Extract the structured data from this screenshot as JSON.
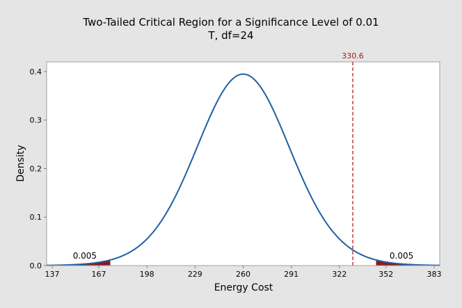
{
  "chart_data": {
    "type": "area",
    "title": "Two-Tailed Critical Region for a Significance Level of 0.01",
    "subtitle": "T, df=24",
    "xlabel": "Energy Cost",
    "ylabel": "Density",
    "distribution": {
      "name": "t",
      "df": 24,
      "location": 260,
      "scale": 30.6
    },
    "xlim": [
      133.4,
      386.6
    ],
    "ylim": [
      0,
      0.42
    ],
    "x_ticks": [
      137,
      167,
      198,
      229,
      260,
      291,
      322,
      352,
      383
    ],
    "y_ticks": [
      0.0,
      0.1,
      0.2,
      0.3,
      0.4
    ],
    "y_tick_labels": [
      "0.0",
      "0.1",
      "0.2",
      "0.3",
      "0.4"
    ],
    "critical_regions": [
      {
        "side": "left",
        "upper": 174.4,
        "area": 0.005,
        "label": "0.005",
        "label_x": 158
      },
      {
        "side": "right",
        "lower": 345.6,
        "area": 0.005,
        "label": "0.005",
        "label_x": 362
      }
    ],
    "reference_line": {
      "x": 330.6,
      "label": "330.6",
      "style": "dashed"
    },
    "colors": {
      "curve": "#1f5fa0",
      "shade": "#8b1a1a",
      "reference": "#b22222",
      "reference_label": "#9b1b1b",
      "plot_bg": "#ffffff",
      "figure_bg": "#e5e5e5",
      "frame": "#a0a0a0"
    },
    "grid": false,
    "legend": "none"
  }
}
